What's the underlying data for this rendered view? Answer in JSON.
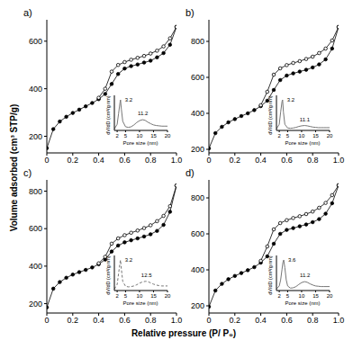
{
  "ylabel": "Volume adsorbed (cm³ STP/g)",
  "xlabel": "Relative pressure (P/ P₀)",
  "chart_data": [
    {
      "type": "line",
      "title": "a)",
      "grid": false,
      "x": [
        0,
        0.05,
        0.1,
        0.15,
        0.2,
        0.25,
        0.3,
        0.35,
        0.4,
        0.45,
        0.5,
        0.55,
        0.6,
        0.65,
        0.7,
        0.75,
        0.8,
        0.85,
        0.9,
        0.95,
        1.0
      ],
      "xlim": [
        0,
        1
      ],
      "xticks": [
        0,
        0.2,
        0.4,
        0.6,
        0.8,
        {
          "value": 1,
          "label": "1.0"
        }
      ],
      "ylim": [
        130,
        690
      ],
      "yticks": [
        200,
        400,
        600
      ],
      "series": [
        {
          "color": "#000000",
          "marker": "circle",
          "values": [
            150,
            230,
            262,
            282,
            298,
            312,
            326,
            340,
            356,
            378,
            420,
            462,
            485,
            495,
            502,
            510,
            518,
            532,
            550,
            585,
            660
          ]
        },
        {
          "color": "#000000",
          "marker": "open_circle",
          "values": [
            null,
            null,
            null,
            null,
            null,
            null,
            null,
            null,
            362,
            400,
            472,
            500,
            512,
            522,
            530,
            538,
            548,
            560,
            578,
            612,
            660
          ]
        }
      ],
      "inset": {
        "type": "line",
        "color": "#777777",
        "line_style": "solid",
        "tick_labels": "x",
        "xlabel": "Pore size (nm)",
        "ylabel": "dV/dD (cm³/g nm)",
        "xlim": [
          1,
          20
        ],
        "xticks": [
          2,
          5,
          10,
          15,
          20
        ],
        "ylim": [
          0,
          1.15
        ],
        "x": [
          1,
          2,
          2.5,
          3,
          3.2,
          3.5,
          4,
          5,
          6,
          7,
          8,
          9,
          10,
          11,
          11.2,
          12,
          13,
          14,
          15,
          16,
          17,
          18,
          19,
          20
        ],
        "values": [
          0.05,
          0.2,
          0.55,
          0.9,
          1.0,
          0.7,
          0.3,
          0.12,
          0.1,
          0.12,
          0.18,
          0.26,
          0.32,
          0.35,
          0.35,
          0.33,
          0.27,
          0.22,
          0.18,
          0.16,
          0.15,
          0.14,
          0.14,
          0.14
        ],
        "annotations": [
          {
            "x": 3.2,
            "y": 1.0,
            "text": "3.2"
          },
          {
            "x": 11.2,
            "y": 0.35,
            "text": "11.2"
          }
        ]
      }
    },
    {
      "type": "line",
      "title": "b)",
      "grid": false,
      "x": [
        0,
        0.05,
        0.1,
        0.15,
        0.2,
        0.25,
        0.3,
        0.35,
        0.4,
        0.45,
        0.5,
        0.55,
        0.6,
        0.65,
        0.7,
        0.75,
        0.8,
        0.85,
        0.9,
        0.95,
        1.0
      ],
      "xlim": [
        0,
        1
      ],
      "xticks": [
        0,
        0.2,
        0.4,
        0.6,
        0.8,
        {
          "value": 1,
          "label": "1.0"
        }
      ],
      "ylim": [
        180,
        920
      ],
      "yticks": [
        200,
        400,
        600,
        800
      ],
      "series": [
        {
          "color": "#000000",
          "marker": "circle",
          "values": [
            205,
            290,
            325,
            350,
            368,
            385,
            400,
            418,
            440,
            470,
            530,
            585,
            610,
            622,
            632,
            642,
            655,
            672,
            700,
            760,
            880
          ]
        },
        {
          "color": "#000000",
          "marker": "open_circle",
          "values": [
            null,
            null,
            null,
            null,
            null,
            null,
            null,
            null,
            445,
            520,
            615,
            650,
            668,
            680,
            690,
            702,
            715,
            735,
            760,
            805,
            880
          ]
        }
      ],
      "inset": {
        "type": "line",
        "color": "#777777",
        "line_style": "solid",
        "tick_labels": "x",
        "xlabel": "Pore size (nm)",
        "ylabel": "dV/dD (cm³/g nm)",
        "xlim": [
          1,
          20
        ],
        "xticks": [
          2,
          5,
          10,
          15,
          20
        ],
        "ylim": [
          0,
          1.15
        ],
        "x": [
          1,
          2,
          2.5,
          3,
          3.2,
          3.5,
          4,
          5,
          6,
          7,
          8,
          9,
          10,
          11,
          11.1,
          12,
          13,
          14,
          15,
          16,
          17,
          18,
          19,
          20
        ],
        "values": [
          0.05,
          0.2,
          0.6,
          0.95,
          1.0,
          0.6,
          0.2,
          0.08,
          0.07,
          0.08,
          0.1,
          0.13,
          0.15,
          0.16,
          0.16,
          0.15,
          0.13,
          0.11,
          0.1,
          0.09,
          0.09,
          0.09,
          0.09,
          0.09
        ],
        "annotations": [
          {
            "x": 3.2,
            "y": 1.0,
            "text": "3.2"
          },
          {
            "x": 11.1,
            "y": 0.16,
            "text": "11.1"
          }
        ]
      }
    },
    {
      "type": "line",
      "title": "c)",
      "grid": false,
      "x": [
        0,
        0.05,
        0.1,
        0.15,
        0.2,
        0.25,
        0.3,
        0.35,
        0.4,
        0.45,
        0.5,
        0.55,
        0.6,
        0.65,
        0.7,
        0.75,
        0.8,
        0.85,
        0.9,
        0.95,
        1.0
      ],
      "xlim": [
        0,
        1
      ],
      "xticks": [
        0,
        0.2,
        0.4,
        0.6,
        0.8,
        {
          "value": 1,
          "label": "1.0"
        }
      ],
      "ylim": [
        150,
        860
      ],
      "yticks": [
        200,
        400,
        600,
        800
      ],
      "series": [
        {
          "color": "#000000",
          "marker": "circle",
          "values": [
            180,
            280,
            315,
            338,
            355,
            368,
            380,
            393,
            410,
            435,
            478,
            510,
            527,
            538,
            548,
            558,
            570,
            588,
            620,
            690,
            830
          ]
        },
        {
          "color": "#000000",
          "marker": "open_circle",
          "values": [
            null,
            null,
            null,
            null,
            null,
            null,
            null,
            null,
            415,
            450,
            520,
            548,
            565,
            578,
            590,
            603,
            618,
            640,
            668,
            720,
            830
          ]
        }
      ],
      "inset": {
        "type": "line",
        "color": "#777777",
        "line_style": "dashed",
        "tick_labels": "x",
        "xlabel": "Pore size (nm)",
        "ylabel": "dV/dD (cm³/g nm)",
        "xlim": [
          1,
          20
        ],
        "xticks": [
          2,
          5,
          10,
          15,
          20
        ],
        "ylim": [
          0,
          1.15
        ],
        "x": [
          1,
          2,
          2.5,
          3,
          3.2,
          3.5,
          4,
          5,
          6,
          7,
          8,
          9,
          10,
          11,
          12,
          12.5,
          13,
          14,
          15,
          16,
          17,
          18,
          19,
          20
        ],
        "values": [
          0.05,
          0.2,
          0.55,
          0.9,
          1.0,
          0.7,
          0.3,
          0.14,
          0.12,
          0.13,
          0.15,
          0.19,
          0.24,
          0.28,
          0.3,
          0.3,
          0.29,
          0.25,
          0.21,
          0.18,
          0.16,
          0.15,
          0.15,
          0.15
        ],
        "annotations": [
          {
            "x": 3.2,
            "y": 1.0,
            "text": "3.2"
          },
          {
            "x": 12.5,
            "y": 0.3,
            "text": "12.5"
          }
        ]
      }
    },
    {
      "type": "line",
      "title": "d)",
      "grid": false,
      "x": [
        0,
        0.05,
        0.1,
        0.15,
        0.2,
        0.25,
        0.3,
        0.35,
        0.4,
        0.45,
        0.5,
        0.55,
        0.6,
        0.65,
        0.7,
        0.75,
        0.8,
        0.85,
        0.9,
        0.95,
        1.0
      ],
      "xlim": [
        0,
        1
      ],
      "xticks": [
        0,
        0.2,
        0.4,
        0.6,
        0.8,
        {
          "value": 1,
          "label": "1.0"
        }
      ],
      "ylim": [
        160,
        900
      ],
      "yticks": [
        200,
        400,
        600,
        800
      ],
      "series": [
        {
          "color": "#000000",
          "marker": "circle",
          "values": [
            195,
            285,
            322,
            348,
            366,
            382,
            398,
            415,
            440,
            475,
            545,
            600,
            622,
            632,
            642,
            652,
            665,
            682,
            712,
            770,
            870
          ]
        },
        {
          "color": "#000000",
          "marker": "open_circle",
          "values": [
            null,
            null,
            null,
            null,
            null,
            null,
            null,
            null,
            450,
            530,
            625,
            660,
            676,
            688,
            698,
            710,
            724,
            745,
            772,
            815,
            870
          ]
        }
      ],
      "inset": {
        "type": "line",
        "color": "#777777",
        "line_style": "solid",
        "tick_labels": "x",
        "xlabel": "Pore size (nm)",
        "ylabel": "dV/dD (cm³/g nm)",
        "xlim": [
          1,
          20
        ],
        "xticks": [
          2,
          5,
          10,
          15,
          20
        ],
        "ylim": [
          0,
          1.15
        ],
        "x": [
          1,
          2,
          2.5,
          3,
          3.3,
          3.6,
          4,
          4.5,
          5,
          6,
          7,
          8,
          9,
          10,
          11,
          11.2,
          12,
          13,
          14,
          15,
          16,
          17,
          18,
          20
        ],
        "values": [
          0.05,
          0.15,
          0.35,
          0.7,
          0.92,
          1.0,
          0.75,
          0.35,
          0.15,
          0.08,
          0.09,
          0.13,
          0.2,
          0.26,
          0.29,
          0.29,
          0.27,
          0.22,
          0.18,
          0.15,
          0.14,
          0.13,
          0.13,
          0.13
        ],
        "annotations": [
          {
            "x": 3.6,
            "y": 1.0,
            "text": "3.6"
          },
          {
            "x": 11.2,
            "y": 0.29,
            "text": "11.2"
          }
        ]
      }
    }
  ]
}
